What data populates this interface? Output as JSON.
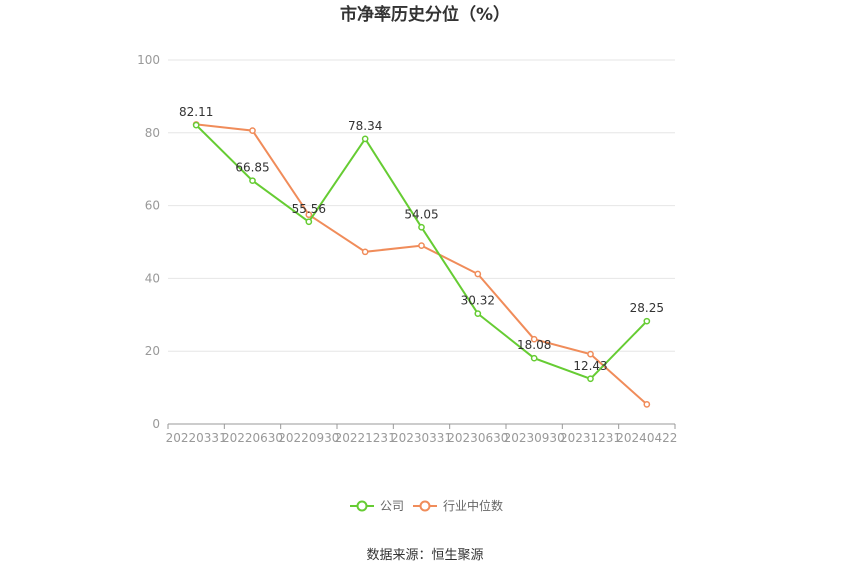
{
  "chart_data": {
    "type": "line",
    "title": "市净率历史分位（%）",
    "categories": [
      "20220331",
      "20220630",
      "20220930",
      "20221231",
      "20230331",
      "20230630",
      "20230930",
      "20231231",
      "20240422"
    ],
    "series": [
      {
        "name": "公司",
        "color": "#66cc33",
        "values": [
          82.11,
          66.85,
          55.56,
          78.34,
          54.05,
          30.32,
          18.08,
          12.43,
          28.25
        ],
        "labels": [
          "82.11",
          "66.85",
          "55.56",
          "78.34",
          "54.05",
          "30.32",
          "18.08",
          "12.43",
          "28.25"
        ]
      },
      {
        "name": "行业中位数",
        "color": "#f08c5a",
        "values": [
          82.3,
          80.6,
          57.5,
          47.3,
          49.0,
          41.2,
          23.3,
          19.2,
          5.4
        ]
      }
    ],
    "ylim": [
      0,
      100
    ],
    "yticks": [
      "0",
      "20",
      "40",
      "60",
      "80",
      "100"
    ],
    "grid": true,
    "legend_position": "bottom-center"
  },
  "source_text": "数据来源：恒生聚源"
}
